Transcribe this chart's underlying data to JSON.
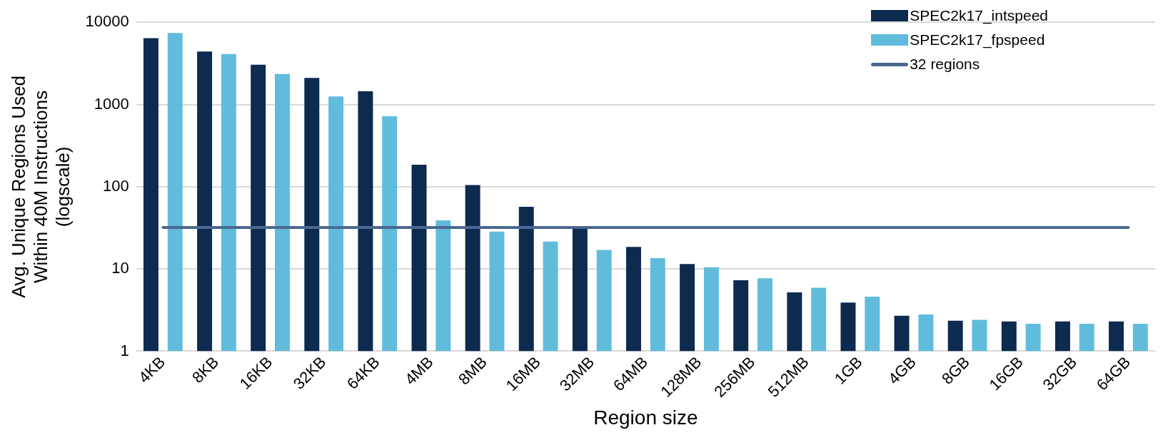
{
  "chart_data": {
    "type": "bar",
    "xlabel": "Region size",
    "ylabel": "Avg. Unique Regions Used Within 40M Instructions (logscale)",
    "categories": [
      "4KB",
      "8KB",
      "16KB",
      "32KB",
      "64KB",
      "4MB",
      "8MB",
      "16MB",
      "32MB",
      "64MB",
      "128MB",
      "256MB",
      "512MB",
      "1GB",
      "4GB",
      "8GB",
      "16GB",
      "32GB",
      "64GB"
    ],
    "series": [
      {
        "name": "SPEC2k17_intspeed",
        "color": "#0d2a4f",
        "values": [
          6400,
          4400,
          3050,
          2100,
          1450,
          185,
          105,
          57,
          33,
          18.5,
          11.5,
          7.3,
          5.2,
          3.9,
          2.7,
          2.35,
          2.3,
          2.3,
          2.3
        ]
      },
      {
        "name": "SPEC2k17_fpspeed",
        "color": "#61bcdc",
        "values": [
          7400,
          4100,
          2350,
          1250,
          720,
          39,
          28.5,
          21.5,
          17,
          13.5,
          10.5,
          7.7,
          5.9,
          4.6,
          2.8,
          2.4,
          2.15,
          2.15,
          2.15
        ]
      },
      {
        "name": "32 regions",
        "type": "line",
        "color": "#4a6890",
        "values": [
          32,
          32,
          32,
          32,
          32,
          32,
          32,
          32,
          32,
          32,
          32,
          32,
          32,
          32,
          32,
          32,
          32,
          32,
          32
        ]
      }
    ],
    "log": "y",
    "ylim": [
      1,
      10000
    ],
    "yticks": [
      1,
      10,
      100,
      1000,
      10000
    ],
    "grid": "y",
    "legend": "top right",
    "marker": "none"
  }
}
